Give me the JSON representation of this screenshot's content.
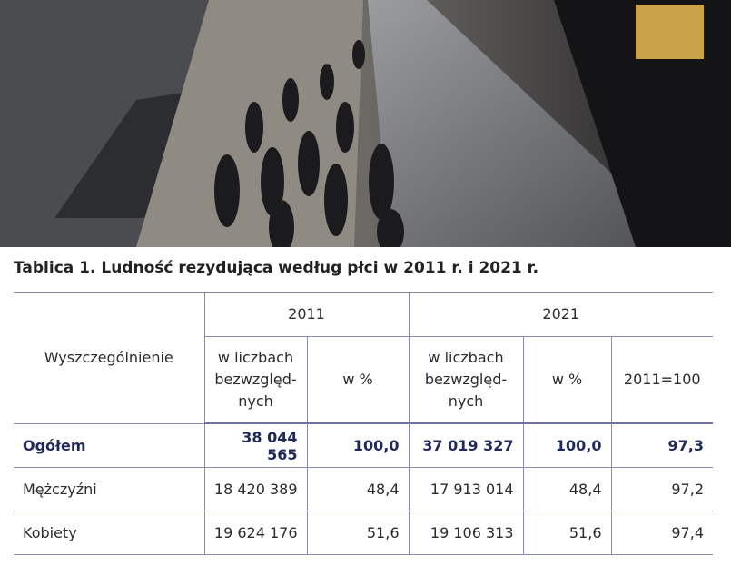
{
  "title": "Tablica 1. Ludność rezydująca według płci w 2011 r. i 2021 r.",
  "table": {
    "header": {
      "label": "Wyszczególnienie",
      "groups": [
        "2011",
        "2021"
      ],
      "columns": [
        "w liczbach\nbezwzględ-\nnych",
        "w %",
        "w liczbach\nbezwzględ-\nnych",
        "w %",
        "2011=100"
      ]
    },
    "rows": [
      [
        "Ogółem",
        "38 044 565",
        "100,0",
        "37 019 327",
        "100,0",
        "97,3"
      ],
      [
        "Mężczyźni",
        "18 420 389",
        "48,4",
        "17 913 014",
        "48,4",
        "97,2"
      ],
      [
        "Kobiety",
        "19 624 176",
        "51,6",
        "19 106 313",
        "51,6",
        "97,4"
      ]
    ]
  }
}
